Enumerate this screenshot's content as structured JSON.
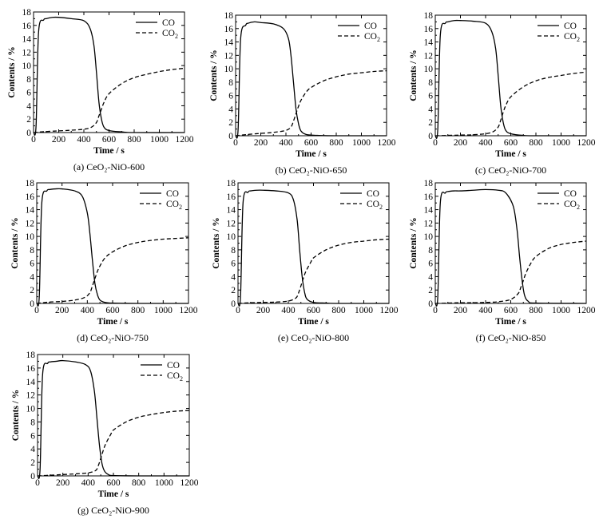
{
  "chart_data": [
    {
      "type": "line",
      "caption": "(a) CeO₂-NiO-600",
      "xlabel": "Time / s",
      "ylabel": "Contents / %",
      "xlim": [
        0,
        1200
      ],
      "ylim": [
        0,
        18
      ],
      "xticks": [
        0,
        200,
        400,
        600,
        800,
        1000,
        1200
      ],
      "yticks": [
        0,
        2,
        4,
        6,
        8,
        10,
        12,
        14,
        16,
        18
      ],
      "legend": "top-right",
      "series": [
        {
          "name": "CO",
          "style": "solid",
          "x": [
            0,
            20,
            40,
            80,
            100,
            150,
            200,
            300,
            400,
            450,
            480,
            500,
            520,
            540,
            560,
            600,
            700,
            800,
            1200
          ],
          "y": [
            0,
            1.0,
            15.0,
            16.8,
            17.0,
            17.2,
            17.2,
            17.0,
            16.7,
            15.5,
            13.0,
            9.0,
            4.5,
            2.0,
            0.8,
            0.3,
            0.1,
            0,
            0
          ]
        },
        {
          "name": "CO2",
          "style": "dashed",
          "x": [
            0,
            100,
            200,
            300,
            400,
            460,
            500,
            520,
            540,
            560,
            600,
            700,
            800,
            900,
            1000,
            1100,
            1200
          ],
          "y": [
            0,
            0.15,
            0.25,
            0.35,
            0.5,
            0.8,
            1.5,
            2.5,
            3.5,
            4.5,
            5.8,
            7.3,
            8.2,
            8.7,
            9.1,
            9.4,
            9.6
          ]
        }
      ]
    },
    {
      "type": "line",
      "caption": "(b) CeO₂-NiO-650",
      "xlabel": "Time / s",
      "ylabel": "Contents / %",
      "xlim": [
        0,
        1200
      ],
      "ylim": [
        0,
        18
      ],
      "xticks": [
        0,
        200,
        400,
        600,
        800,
        1000,
        1200
      ],
      "yticks": [
        0,
        2,
        4,
        6,
        8,
        10,
        12,
        14,
        16,
        18
      ],
      "legend": "top-right",
      "series": [
        {
          "name": "CO",
          "style": "solid",
          "x": [
            0,
            20,
            40,
            80,
            100,
            150,
            200,
            300,
            380,
            420,
            440,
            460,
            480,
            500,
            520,
            560,
            650,
            800,
            1200
          ],
          "y": [
            0,
            1.0,
            14.5,
            16.5,
            16.8,
            17.0,
            16.9,
            16.7,
            16.0,
            14.5,
            12.0,
            8.0,
            4.0,
            1.8,
            0.7,
            0.2,
            0.05,
            0,
            0
          ]
        },
        {
          "name": "CO2",
          "style": "dashed",
          "x": [
            0,
            100,
            200,
            300,
            400,
            440,
            460,
            480,
            500,
            520,
            560,
            600,
            700,
            800,
            900,
            1000,
            1100,
            1200
          ],
          "y": [
            0,
            0.2,
            0.35,
            0.5,
            0.8,
            1.3,
            2.2,
            3.3,
            4.4,
            5.3,
            6.5,
            7.2,
            8.2,
            8.8,
            9.2,
            9.4,
            9.6,
            9.7
          ]
        }
      ]
    },
    {
      "type": "line",
      "caption": "(c) CeO₂-NiO-700",
      "xlabel": "Time / s",
      "ylabel": "Contents / %",
      "xlim": [
        0,
        1200
      ],
      "ylim": [
        0,
        18
      ],
      "xticks": [
        0,
        200,
        400,
        600,
        800,
        1000,
        1200
      ],
      "yticks": [
        0,
        2,
        4,
        6,
        8,
        10,
        12,
        14,
        16,
        18
      ],
      "legend": "top-right",
      "series": [
        {
          "name": "CO",
          "style": "solid",
          "x": [
            0,
            20,
            40,
            80,
            100,
            150,
            200,
            300,
            400,
            450,
            480,
            500,
            520,
            540,
            560,
            600,
            700,
            800,
            1200
          ],
          "y": [
            0,
            1.0,
            15.0,
            16.8,
            17.0,
            17.2,
            17.2,
            17.1,
            16.8,
            15.5,
            13.0,
            9.0,
            4.5,
            2.0,
            0.8,
            0.3,
            0.05,
            0,
            0
          ]
        },
        {
          "name": "CO2",
          "style": "dashed",
          "x": [
            0,
            100,
            200,
            300,
            400,
            460,
            500,
            520,
            540,
            560,
            600,
            700,
            800,
            900,
            1000,
            1100,
            1200
          ],
          "y": [
            0,
            0.05,
            0.1,
            0.15,
            0.3,
            0.6,
            1.3,
            2.3,
            3.5,
            4.5,
            5.8,
            7.3,
            8.2,
            8.7,
            9.0,
            9.3,
            9.5
          ]
        }
      ]
    },
    {
      "type": "line",
      "caption": "(d) CeO₂-NiO-750",
      "xlabel": "Time / s",
      "ylabel": "Contents / %",
      "xlim": [
        0,
        1200
      ],
      "ylim": [
        0,
        18
      ],
      "xticks": [
        0,
        200,
        400,
        600,
        800,
        1000,
        1200
      ],
      "yticks": [
        0,
        2,
        4,
        6,
        8,
        10,
        12,
        14,
        16,
        18
      ],
      "legend": "top-right",
      "series": [
        {
          "name": "CO",
          "style": "solid",
          "x": [
            0,
            20,
            40,
            80,
            100,
            150,
            200,
            300,
            360,
            400,
            420,
            440,
            460,
            480,
            500,
            540,
            600,
            800,
            1200
          ],
          "y": [
            0,
            1.0,
            15.0,
            16.8,
            17.0,
            17.1,
            17.1,
            16.8,
            16.0,
            13.5,
            10.5,
            6.5,
            3.0,
            1.3,
            0.5,
            0.15,
            0.05,
            0,
            0
          ]
        },
        {
          "name": "CO2",
          "style": "dashed",
          "x": [
            0,
            100,
            200,
            300,
            380,
            420,
            440,
            460,
            480,
            500,
            540,
            600,
            700,
            800,
            900,
            1000,
            1100,
            1200
          ],
          "y": [
            0,
            0.2,
            0.3,
            0.5,
            0.9,
            1.6,
            2.6,
            3.7,
            4.8,
            5.6,
            6.8,
            7.7,
            8.6,
            9.1,
            9.4,
            9.6,
            9.7,
            9.8
          ]
        }
      ]
    },
    {
      "type": "line",
      "caption": "(e) CeO₂-NiO-800",
      "xlabel": "Time / s",
      "ylabel": "Contents / %",
      "xlim": [
        0,
        1200
      ],
      "ylim": [
        0,
        18
      ],
      "xticks": [
        0,
        200,
        400,
        600,
        800,
        1000,
        1200
      ],
      "yticks": [
        0,
        2,
        4,
        6,
        8,
        10,
        12,
        14,
        16,
        18
      ],
      "legend": "top-right",
      "series": [
        {
          "name": "CO",
          "style": "solid",
          "x": [
            0,
            20,
            40,
            80,
            100,
            150,
            200,
            300,
            400,
            440,
            470,
            490,
            510,
            530,
            550,
            600,
            700,
            800,
            1200
          ],
          "y": [
            0,
            1.0,
            15.0,
            16.6,
            16.8,
            16.9,
            16.9,
            16.8,
            16.5,
            15.5,
            12.5,
            8.0,
            4.0,
            1.6,
            0.6,
            0.15,
            0.05,
            0,
            0
          ]
        },
        {
          "name": "CO2",
          "style": "dashed",
          "x": [
            0,
            100,
            200,
            300,
            400,
            460,
            480,
            500,
            520,
            540,
            580,
            600,
            700,
            800,
            900,
            1000,
            1100,
            1200
          ],
          "y": [
            0,
            0.1,
            0.15,
            0.2,
            0.35,
            0.8,
            1.5,
            2.6,
            3.8,
            4.8,
            6.2,
            6.8,
            8.0,
            8.7,
            9.1,
            9.3,
            9.5,
            9.6
          ]
        }
      ]
    },
    {
      "type": "line",
      "caption": "(f) CeO₂-NiO-850",
      "xlabel": "Time / s",
      "ylabel": "Contents / %",
      "xlim": [
        0,
        1200
      ],
      "ylim": [
        0,
        18
      ],
      "xticks": [
        0,
        200,
        400,
        600,
        800,
        1000,
        1200
      ],
      "yticks": [
        0,
        2,
        4,
        6,
        8,
        10,
        12,
        14,
        16,
        18
      ],
      "legend": "top-right",
      "series": [
        {
          "name": "CO",
          "style": "solid",
          "x": [
            0,
            20,
            40,
            80,
            100,
            150,
            200,
            300,
            400,
            500,
            560,
            620,
            650,
            670,
            690,
            710,
            740,
            800,
            1200
          ],
          "y": [
            0,
            1.0,
            15.0,
            16.5,
            16.7,
            16.8,
            16.8,
            16.9,
            17.0,
            16.9,
            16.5,
            14.5,
            11.0,
            7.0,
            3.5,
            1.2,
            0.3,
            0.05,
            0
          ]
        },
        {
          "name": "CO2",
          "style": "dashed",
          "x": [
            0,
            100,
            200,
            300,
            400,
            500,
            600,
            660,
            680,
            700,
            720,
            760,
            800,
            900,
            1000,
            1100,
            1200
          ],
          "y": [
            0,
            0.05,
            0.1,
            0.1,
            0.15,
            0.25,
            0.6,
            1.5,
            2.4,
            3.4,
            4.5,
            6.0,
            7.0,
            8.2,
            8.8,
            9.1,
            9.3
          ]
        }
      ]
    },
    {
      "type": "line",
      "caption": "(g) CeO₂-NiO-900",
      "xlabel": "Time / s",
      "ylabel": "Contents / %",
      "xlim": [
        0,
        1200
      ],
      "ylim": [
        0,
        18
      ],
      "xticks": [
        0,
        200,
        400,
        600,
        800,
        1000,
        1200
      ],
      "yticks": [
        0,
        2,
        4,
        6,
        8,
        10,
        12,
        14,
        16,
        18
      ],
      "legend": "top-right",
      "series": [
        {
          "name": "CO",
          "style": "solid",
          "x": [
            0,
            20,
            40,
            80,
            100,
            150,
            200,
            300,
            380,
            420,
            450,
            470,
            490,
            510,
            530,
            560,
            600,
            800,
            1200
          ],
          "y": [
            0,
            1.0,
            15.0,
            16.7,
            16.9,
            17.0,
            17.1,
            16.9,
            16.5,
            15.5,
            12.5,
            8.5,
            4.5,
            1.8,
            0.7,
            0.2,
            0.05,
            0,
            0
          ]
        },
        {
          "name": "CO2",
          "style": "dashed",
          "x": [
            0,
            100,
            200,
            300,
            400,
            460,
            480,
            500,
            520,
            540,
            580,
            600,
            700,
            800,
            900,
            1000,
            1100,
            1200
          ],
          "y": [
            0,
            0.1,
            0.2,
            0.3,
            0.45,
            0.8,
            1.5,
            2.6,
            3.8,
            4.8,
            6.2,
            6.8,
            8.0,
            8.7,
            9.1,
            9.4,
            9.6,
            9.7
          ]
        }
      ]
    }
  ]
}
